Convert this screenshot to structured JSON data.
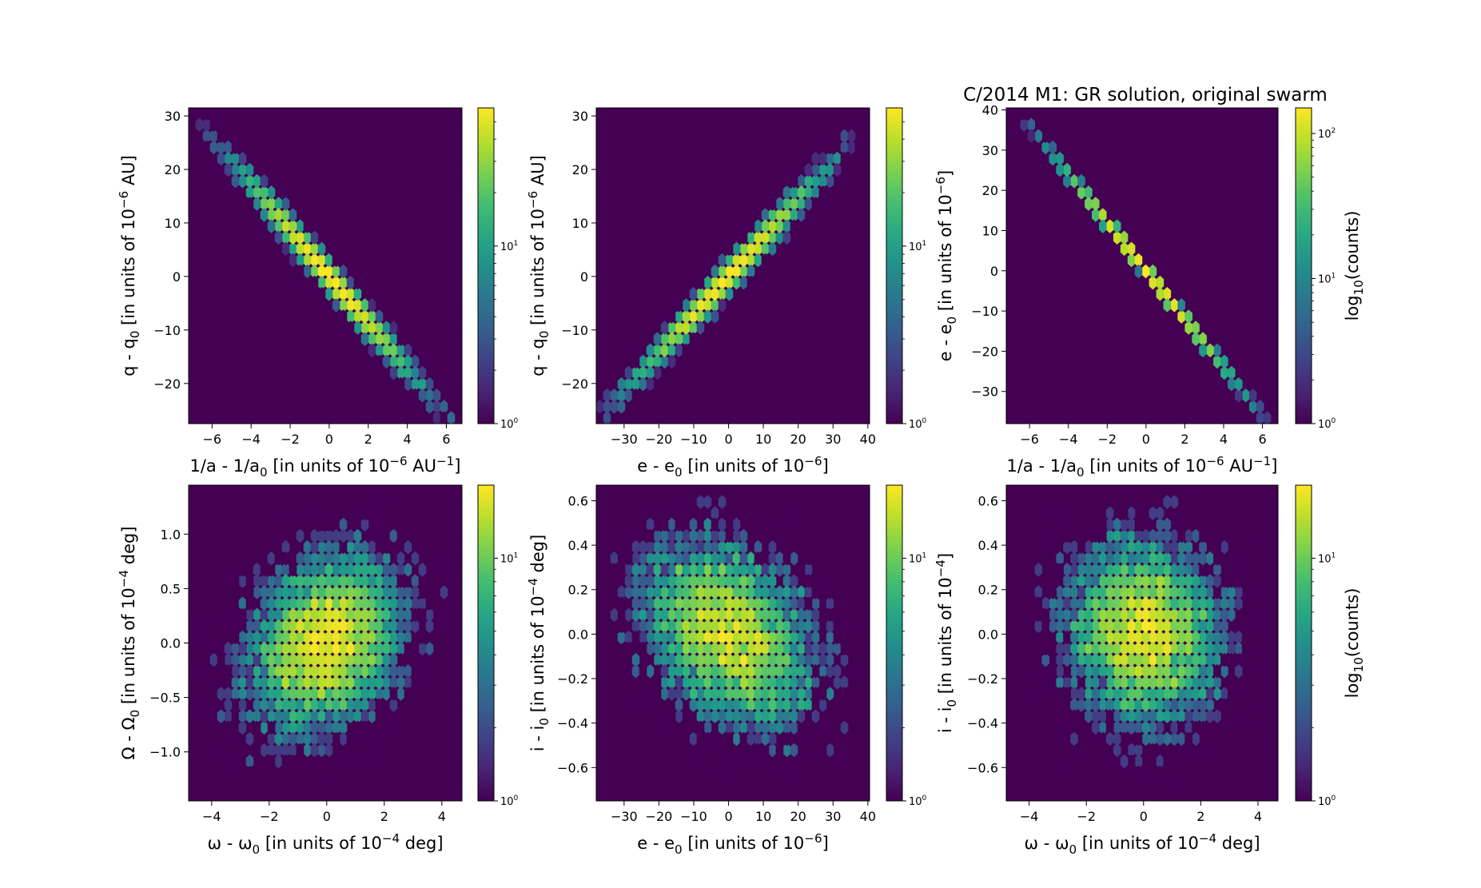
{
  "figure": {
    "title": "C/2014 M1:  GR solution, original swarm"
  },
  "colors": {
    "cmap": [
      "#440154",
      "#482878",
      "#3e4989",
      "#31688e",
      "#26828e",
      "#1f9e89",
      "#35b779",
      "#6ece58",
      "#b5de2b",
      "#fde725"
    ],
    "background": "#440154",
    "axes": "#000000"
  },
  "chart_data": [
    {
      "type": "heatmap",
      "subtype": "hexbin",
      "xlabel": "1/a - 1/a<sub>0</sub> [in units of 10<sup>−6</sup> AU<sup>−1</sup>]",
      "ylabel": "q - q<sub>0</sub> [in units of 10<sup>−6</sup> AU]",
      "xlim": [
        -7.2,
        6.8
      ],
      "ylim": [
        -27.5,
        31.5
      ],
      "xticks": [
        -6,
        -4,
        -2,
        0,
        2,
        4,
        6
      ],
      "yticks": [
        -20,
        -10,
        0,
        10,
        20,
        30
      ],
      "corr": -0.99,
      "x_sd": 2.0,
      "y_sd": 8.7,
      "slope": -4.35,
      "peak_density": "high",
      "colorbar": {
        "scale": "log",
        "min": 1,
        "max": 60,
        "ticks": [
          1,
          10
        ],
        "label": ""
      }
    },
    {
      "type": "heatmap",
      "subtype": "hexbin",
      "xlabel": "e - e<sub>0</sub> [in units of 10<sup>−6</sup>]",
      "ylabel": "q - q<sub>0</sub> [in units of 10<sup>−6</sup> AU]",
      "xlim": [
        -38,
        40.5
      ],
      "ylim": [
        -27.5,
        31.5
      ],
      "xticks": [
        -30,
        -20,
        -10,
        0,
        10,
        20,
        30,
        40
      ],
      "yticks": [
        -20,
        -10,
        0,
        10,
        20,
        30
      ],
      "corr": 0.99,
      "x_sd": 12,
      "y_sd": 8.7,
      "slope": 0.72,
      "peak_density": "high",
      "colorbar": {
        "scale": "log",
        "min": 1,
        "max": 60,
        "ticks": [
          1,
          10
        ],
        "label": ""
      }
    },
    {
      "type": "heatmap",
      "subtype": "hexbin",
      "title": "C/2014 M1:  GR solution, original swarm",
      "xlabel": "1/a - 1/a<sub>0</sub> [in units of 10<sup>−6</sup> AU<sup>−1</sup>]",
      "ylabel": "e - e<sub>0</sub> [in units of 10<sup>−6</sup>]",
      "xlim": [
        -7.2,
        6.8
      ],
      "ylim": [
        -38,
        40.5
      ],
      "xticks": [
        -6,
        -4,
        -2,
        0,
        2,
        4,
        6
      ],
      "yticks": [
        -30,
        -20,
        -10,
        0,
        10,
        20,
        30,
        40
      ],
      "corr": -1.0,
      "x_sd": 2.0,
      "y_sd": 12,
      "slope": -5.95,
      "peak_density": "very high",
      "colorbar": {
        "scale": "log",
        "min": 1,
        "max": 150,
        "ticks": [
          1,
          10,
          100
        ],
        "label": "log<sub>10</sub>(counts)"
      }
    },
    {
      "type": "heatmap",
      "subtype": "hexbin",
      "xlabel": "ω - ω<sub>0</sub> [in units of 10<sup>−4</sup> deg]",
      "ylabel": "Ω - Ω<sub>0</sub> [in units of 10<sup>−4</sup> deg]",
      "xlim": [
        -4.8,
        4.7
      ],
      "ylim": [
        -1.45,
        1.45
      ],
      "xticks": [
        -4,
        -2,
        0,
        2,
        4
      ],
      "yticks": [
        -1.0,
        -0.5,
        0.0,
        0.5,
        1.0
      ],
      "corr": 0.25,
      "x_sd": 1.3,
      "y_sd": 0.4,
      "peak_density": "low",
      "colorbar": {
        "scale": "log",
        "min": 1,
        "max": 20,
        "ticks": [
          1,
          10
        ],
        "label": ""
      }
    },
    {
      "type": "heatmap",
      "subtype": "hexbin",
      "xlabel": "e - e<sub>0</sub> [in units of 10<sup>−6</sup>]",
      "ylabel": "i - i<sub>0</sub> [in units of 10<sup>−4</sup> deg]",
      "xlim": [
        -38,
        40.5
      ],
      "ylim": [
        -0.75,
        0.67
      ],
      "xticks": [
        -30,
        -20,
        -10,
        0,
        10,
        20,
        30,
        40
      ],
      "yticks": [
        -0.6,
        -0.4,
        -0.2,
        0.0,
        0.2,
        0.4,
        0.6
      ],
      "corr": -0.35,
      "x_sd": 12,
      "y_sd": 0.2,
      "peak_density": "low",
      "colorbar": {
        "scale": "log",
        "min": 1,
        "max": 20,
        "ticks": [
          1,
          10
        ],
        "label": ""
      }
    },
    {
      "type": "heatmap",
      "subtype": "hexbin",
      "xlabel": "ω - ω<sub>0</sub> [in units of 10<sup>−4</sup> deg]",
      "ylabel": "i - i<sub>0</sub> [in units of 10<sup>−4</sup>]",
      "xlim": [
        -4.8,
        4.7
      ],
      "ylim": [
        -0.75,
        0.67
      ],
      "xticks": [
        -4,
        -2,
        0,
        2,
        4
      ],
      "yticks": [
        -0.6,
        -0.4,
        -0.2,
        0.0,
        0.2,
        0.4,
        0.6
      ],
      "corr": -0.05,
      "x_sd": 1.3,
      "y_sd": 0.2,
      "peak_density": "low",
      "colorbar": {
        "scale": "log",
        "min": 1,
        "max": 20,
        "ticks": [
          1,
          10
        ],
        "label": "log<sub>10</sub>(counts)"
      }
    }
  ]
}
